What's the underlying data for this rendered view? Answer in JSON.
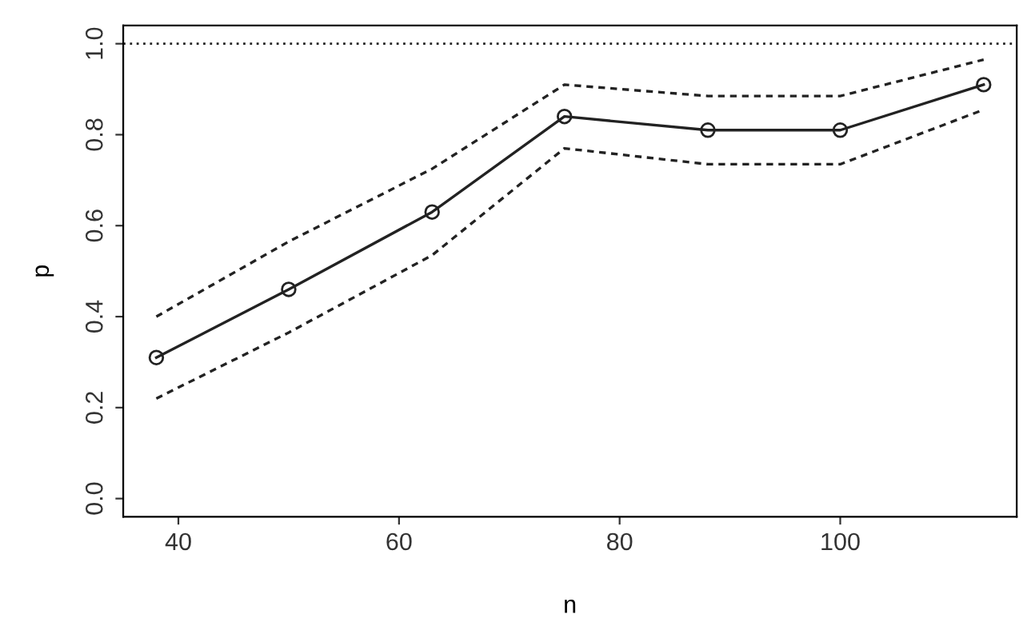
{
  "chart_data": {
    "type": "line",
    "xlabel": "n",
    "ylabel": "p",
    "x": [
      38,
      50,
      63,
      75,
      88,
      100,
      113
    ],
    "series": [
      {
        "color": "#222222",
        "marker": "circle",
        "line_style": "solid",
        "values": [
          0.31,
          0.46,
          0.63,
          0.84,
          0.81,
          0.81,
          0.91
        ]
      },
      {
        "color": "#222222",
        "marker": "none",
        "line_style": "dashed",
        "values": [
          0.4,
          0.565,
          0.725,
          0.91,
          0.885,
          0.885,
          0.965
        ]
      },
      {
        "color": "#222222",
        "marker": "none",
        "line_style": "dashed",
        "values": [
          0.22,
          0.365,
          0.535,
          0.77,
          0.735,
          0.735,
          0.855
        ]
      }
    ],
    "xlim": [
      35,
      116
    ],
    "ylim": [
      -0.04,
      1.04
    ],
    "xticks": [
      40,
      60,
      80,
      100
    ],
    "yticks": [
      {
        "value": 0,
        "label": "0.0"
      },
      {
        "value": 0.2,
        "label": "0.2"
      },
      {
        "value": 0.4,
        "label": "0.4"
      },
      {
        "value": 0.6,
        "label": "0.6"
      },
      {
        "value": 0.8,
        "label": "0.8"
      },
      {
        "value": 1,
        "label": "1.0"
      }
    ],
    "ref_lines": [
      {
        "axis": "y",
        "value": 1,
        "label": null,
        "line_style": "dotted",
        "color": "#222222"
      }
    ],
    "grid": false,
    "legend": false
  }
}
